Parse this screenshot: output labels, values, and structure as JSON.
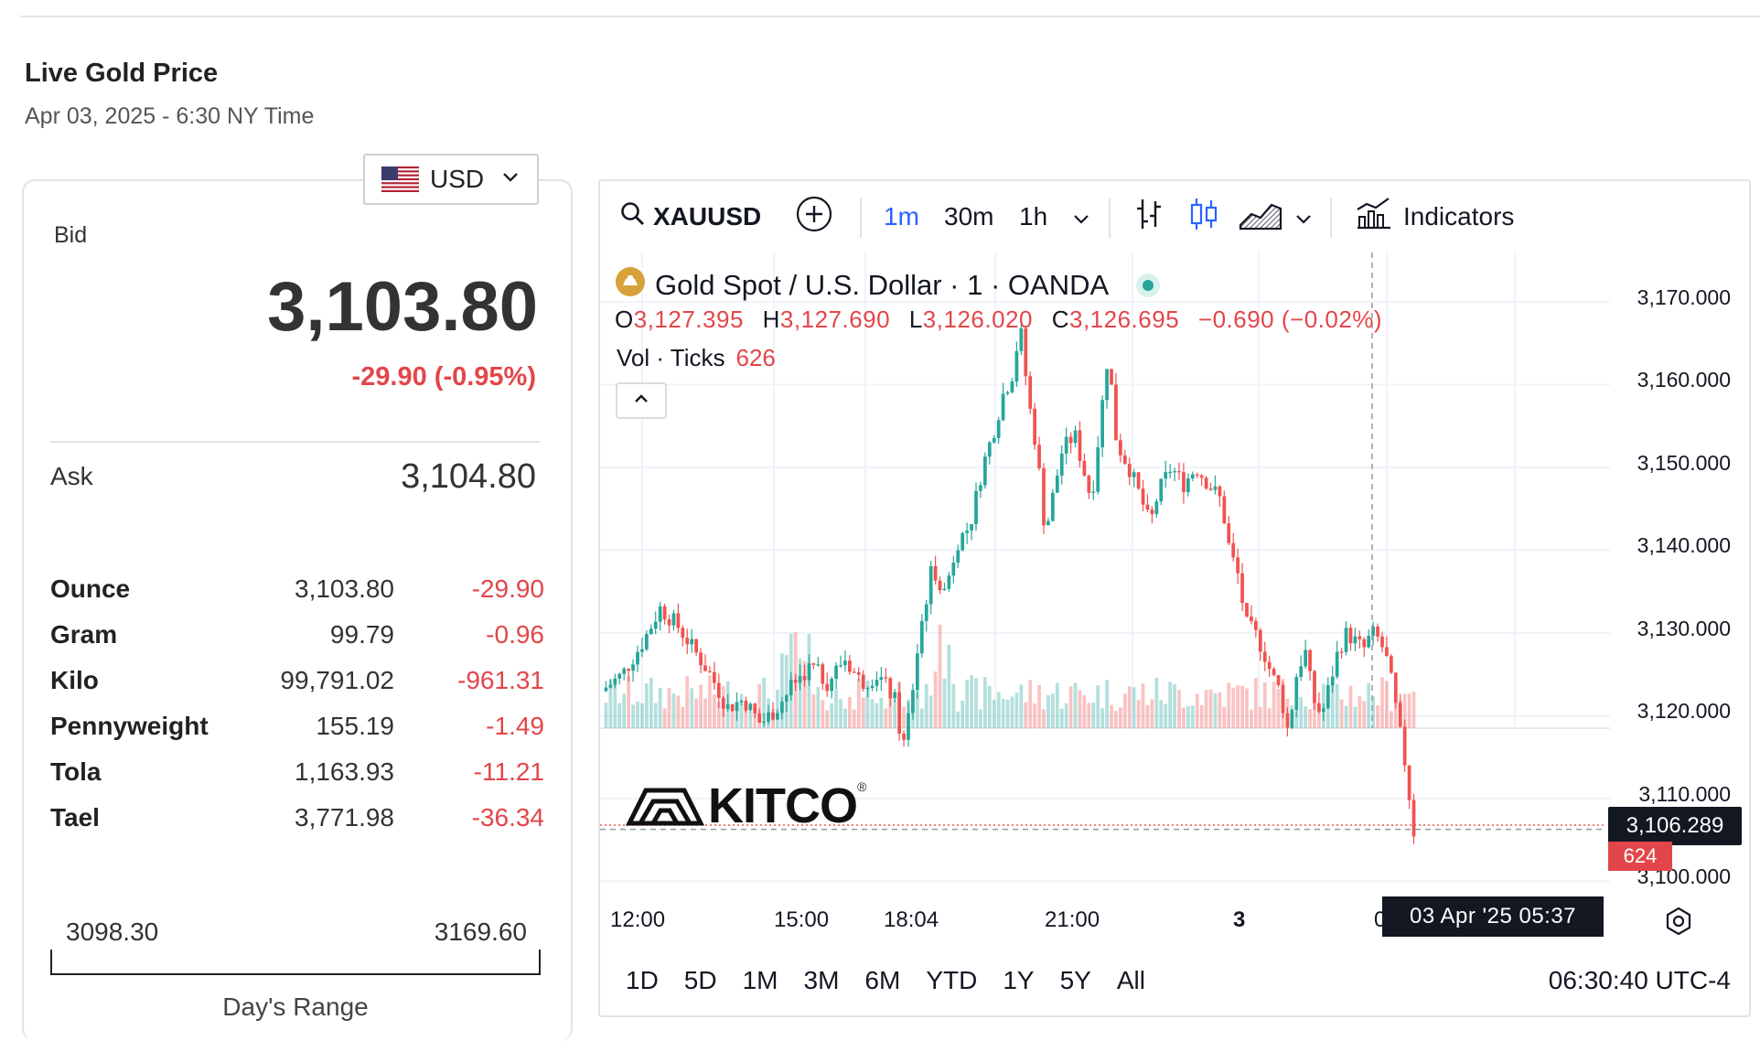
{
  "header": {
    "title": "Live Gold Price",
    "date": "Apr 03, 2025 - 6:30 NY Time"
  },
  "currency": {
    "selected": "USD"
  },
  "quote": {
    "bid_label": "Bid",
    "bid": "3,103.80",
    "change": "-29.90 (-0.95%)",
    "ask_label": "Ask",
    "ask": "3,104.80"
  },
  "units": [
    {
      "name": "Ounce",
      "value": "3,103.80",
      "change": "-29.90"
    },
    {
      "name": "Gram",
      "value": "99.79",
      "change": "-0.96"
    },
    {
      "name": "Kilo",
      "value": "99,791.02",
      "change": "-961.31"
    },
    {
      "name": "Pennyweight",
      "value": "155.19",
      "change": "-1.49"
    },
    {
      "name": "Tola",
      "value": "1,163.93",
      "change": "-11.21"
    },
    {
      "name": "Tael",
      "value": "3,771.98",
      "change": "-36.34"
    }
  ],
  "day_range": {
    "low": "3098.30",
    "high": "3169.60",
    "label": "Day's Range"
  },
  "toolbar": {
    "symbol": "XAUUSD",
    "intervals": [
      "1m",
      "30m",
      "1h"
    ],
    "active_interval": "1m",
    "indicators_label": "Indicators"
  },
  "legend": {
    "title": "Gold Spot / U.S. Dollar · 1 · OANDA",
    "o_label": "O",
    "o": "3,127.395",
    "h_label": "H",
    "h": "3,127.690",
    "l_label": "L",
    "l": "3,126.020",
    "c_label": "C",
    "c": "3,126.695",
    "chg": "−0.690 (−0.02%)",
    "vol_label": "Vol · Ticks",
    "vol": "626"
  },
  "price_axis": [
    "3,170.000",
    "3,160.000",
    "3,150.000",
    "3,140.000",
    "3,130.000",
    "3,120.000",
    "3,110.000",
    "3,100.000"
  ],
  "time_axis": [
    "12:00",
    "15:00",
    "18:04",
    "21:00",
    "3",
    "0"
  ],
  "crosshair": {
    "price": "3,106.289",
    "volume": "624",
    "time": "03 Apr '25   05:37"
  },
  "watermark": "KITCO",
  "ranges": [
    "1D",
    "5D",
    "1M",
    "3M",
    "6M",
    "YTD",
    "1Y",
    "5Y",
    "All"
  ],
  "clock": "06:30:40 UTC-4",
  "colors": {
    "up": "#26a69a",
    "down": "#ef5350",
    "accent": "#2962ff",
    "negative_text": "#e2464a"
  },
  "chart_data": {
    "type": "candlestick",
    "ylim": [
      3098,
      3172
    ],
    "path_points": [
      [
        0,
        3123
      ],
      [
        5,
        3125
      ],
      [
        10,
        3129
      ],
      [
        14,
        3133
      ],
      [
        18,
        3131
      ],
      [
        22,
        3128
      ],
      [
        26,
        3125
      ],
      [
        30,
        3121
      ],
      [
        34,
        3122
      ],
      [
        38,
        3119
      ],
      [
        42,
        3121
      ],
      [
        46,
        3124
      ],
      [
        50,
        3126
      ],
      [
        54,
        3124
      ],
      [
        58,
        3127
      ],
      [
        62,
        3124
      ],
      [
        66,
        3125
      ],
      [
        70,
        3122
      ],
      [
        72,
        3116
      ],
      [
        74,
        3122
      ],
      [
        76,
        3130
      ],
      [
        79,
        3138
      ],
      [
        82,
        3135
      ],
      [
        85,
        3141
      ],
      [
        88,
        3143
      ],
      [
        91,
        3150
      ],
      [
        94,
        3155
      ],
      [
        96,
        3159
      ],
      [
        98,
        3161
      ],
      [
        100,
        3167
      ],
      [
        102,
        3158
      ],
      [
        104,
        3152
      ],
      [
        106,
        3142
      ],
      [
        108,
        3147
      ],
      [
        110,
        3152
      ],
      [
        113,
        3154
      ],
      [
        115,
        3150
      ],
      [
        117,
        3146
      ],
      [
        119,
        3155
      ],
      [
        121,
        3164
      ],
      [
        123,
        3153
      ],
      [
        126,
        3150
      ],
      [
        129,
        3146
      ],
      [
        131,
        3143
      ],
      [
        133,
        3147
      ],
      [
        136,
        3150
      ],
      [
        139,
        3148
      ],
      [
        142,
        3150
      ],
      [
        145,
        3148
      ],
      [
        148,
        3146
      ],
      [
        150,
        3140
      ],
      [
        152,
        3137
      ],
      [
        154,
        3131
      ],
      [
        156,
        3130
      ],
      [
        158,
        3128
      ],
      [
        160,
        3125
      ],
      [
        162,
        3123
      ],
      [
        164,
        3118
      ],
      [
        166,
        3125
      ],
      [
        168,
        3128
      ],
      [
        170,
        3122
      ],
      [
        172,
        3120
      ],
      [
        174,
        3124
      ],
      [
        176,
        3128
      ],
      [
        178,
        3130
      ],
      [
        180,
        3129
      ],
      [
        182,
        3128
      ],
      [
        184,
        3130
      ],
      [
        186,
        3129
      ],
      [
        188,
        3126
      ],
      [
        190,
        3120
      ],
      [
        192,
        3114
      ],
      [
        194,
        3106
      ]
    ]
  }
}
